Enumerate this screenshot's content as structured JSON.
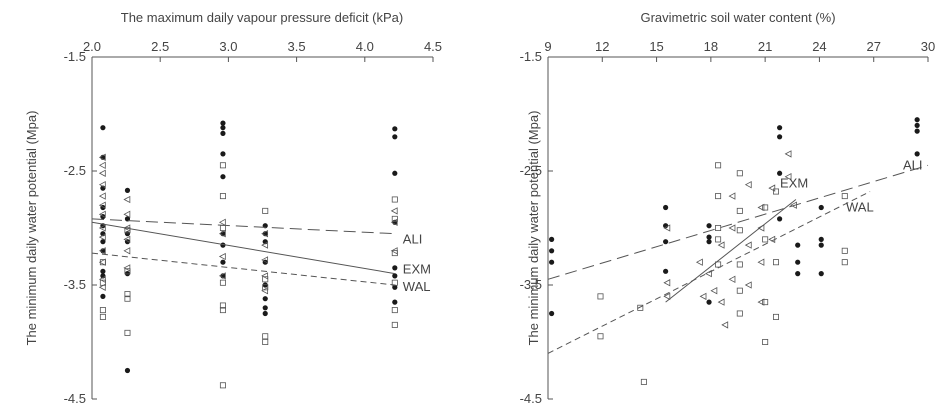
{
  "chart_data": [
    {
      "type": "scatter",
      "xlabel": "The maximum daily vapour pressure deficit (kPa)",
      "ylabel": "The minimum daily water potential (Mpa)",
      "xlim": [
        2.0,
        4.5
      ],
      "ylim": [
        -4.5,
        -1.5
      ],
      "xticks": [
        "2.0",
        "2.5",
        "3.0",
        "3.5",
        "4.0",
        "4.5"
      ],
      "yticks": [
        "-1.5",
        "-2.5",
        "-3.5",
        "-4.5"
      ],
      "x_axis_position": "top",
      "series": [
        {
          "name": "ALI",
          "marker": "filled-circle",
          "points": [
            [
              2.08,
              -2.12
            ],
            [
              2.08,
              -2.38
            ],
            [
              2.08,
              -2.65
            ],
            [
              2.08,
              -2.82
            ],
            [
              2.08,
              -2.9
            ],
            [
              2.08,
              -2.98
            ],
            [
              2.08,
              -3.05
            ],
            [
              2.08,
              -3.12
            ],
            [
              2.08,
              -3.2
            ],
            [
              2.08,
              -3.38
            ],
            [
              2.08,
              -3.42
            ],
            [
              2.08,
              -3.6
            ],
            [
              2.26,
              -2.67
            ],
            [
              2.26,
              -2.92
            ],
            [
              2.26,
              -3.05
            ],
            [
              2.26,
              -3.12
            ],
            [
              2.26,
              -3.4
            ],
            [
              2.26,
              -4.25
            ],
            [
              2.96,
              -2.08
            ],
            [
              2.96,
              -2.12
            ],
            [
              2.96,
              -2.17
            ],
            [
              2.96,
              -2.35
            ],
            [
              2.96,
              -2.55
            ],
            [
              2.96,
              -3.05
            ],
            [
              2.96,
              -3.15
            ],
            [
              2.96,
              -3.3
            ],
            [
              2.96,
              -3.42
            ],
            [
              3.27,
              -2.98
            ],
            [
              3.27,
              -3.05
            ],
            [
              3.27,
              -3.12
            ],
            [
              3.27,
              -3.3
            ],
            [
              3.27,
              -3.5
            ],
            [
              3.27,
              -3.62
            ],
            [
              3.27,
              -3.7
            ],
            [
              3.27,
              -3.75
            ],
            [
              4.22,
              -2.13
            ],
            [
              4.22,
              -2.2
            ],
            [
              4.22,
              -2.52
            ],
            [
              4.22,
              -2.95
            ],
            [
              4.22,
              -3.35
            ],
            [
              4.22,
              -3.42
            ],
            [
              4.22,
              -3.52
            ],
            [
              4.22,
              -3.65
            ]
          ],
          "fit": {
            "x": [
              2.0,
              4.22
            ],
            "y": [
              -2.92,
              -3.05
            ],
            "style": "long-dash"
          }
        },
        {
          "name": "EXM",
          "marker": "open-triangle",
          "points": [
            [
              2.08,
              -2.38
            ],
            [
              2.08,
              -2.45
            ],
            [
              2.08,
              -2.52
            ],
            [
              2.08,
              -2.62
            ],
            [
              2.08,
              -2.72
            ],
            [
              2.08,
              -2.8
            ],
            [
              2.08,
              -2.88
            ],
            [
              2.08,
              -3.0
            ],
            [
              2.08,
              -3.08
            ],
            [
              2.08,
              -3.2
            ],
            [
              2.08,
              -3.3
            ],
            [
              2.08,
              -3.45
            ],
            [
              2.08,
              -3.52
            ],
            [
              2.26,
              -2.75
            ],
            [
              2.26,
              -2.88
            ],
            [
              2.26,
              -3.0
            ],
            [
              2.26,
              -3.1
            ],
            [
              2.26,
              -3.2
            ],
            [
              2.26,
              -3.35
            ],
            [
              2.96,
              -2.95
            ],
            [
              2.96,
              -3.05
            ],
            [
              2.96,
              -3.25
            ],
            [
              2.96,
              -3.42
            ],
            [
              3.27,
              -3.05
            ],
            [
              3.27,
              -3.15
            ],
            [
              3.27,
              -3.28
            ],
            [
              3.27,
              -3.42
            ],
            [
              3.27,
              -3.55
            ],
            [
              4.22,
              -2.85
            ],
            [
              4.22,
              -2.95
            ],
            [
              4.22,
              -3.2
            ]
          ],
          "fit": {
            "x": [
              2.0,
              4.22
            ],
            "y": [
              -2.95,
              -3.4
            ],
            "style": "solid"
          }
        },
        {
          "name": "WAL",
          "marker": "open-square",
          "points": [
            [
              2.08,
              -3.3
            ],
            [
              2.08,
              -3.48
            ],
            [
              2.08,
              -3.72
            ],
            [
              2.08,
              -3.78
            ],
            [
              2.26,
              -3.02
            ],
            [
              2.26,
              -3.38
            ],
            [
              2.26,
              -3.58
            ],
            [
              2.26,
              -3.62
            ],
            [
              2.26,
              -3.92
            ],
            [
              2.96,
              -2.45
            ],
            [
              2.96,
              -2.72
            ],
            [
              2.96,
              -3.0
            ],
            [
              2.96,
              -3.48
            ],
            [
              2.96,
              -3.68
            ],
            [
              2.96,
              -3.72
            ],
            [
              2.96,
              -4.38
            ],
            [
              3.27,
              -2.85
            ],
            [
              3.27,
              -3.45
            ],
            [
              3.27,
              -3.52
            ],
            [
              3.27,
              -3.95
            ],
            [
              3.27,
              -4.0
            ],
            [
              4.22,
              -2.75
            ],
            [
              4.22,
              -2.92
            ],
            [
              4.22,
              -3.22
            ],
            [
              4.22,
              -3.48
            ],
            [
              4.22,
              -3.72
            ],
            [
              4.22,
              -3.85
            ]
          ],
          "fit": {
            "x": [
              2.0,
              4.22
            ],
            "y": [
              -3.22,
              -3.5
            ],
            "style": "short-dash"
          }
        }
      ]
    },
    {
      "type": "scatter",
      "xlabel": "Gravimetric soil water content (%)",
      "ylabel": "The minimum daily water potential (Mpa)",
      "xlim": [
        9,
        30
      ],
      "ylim": [
        -4.5,
        -1.5
      ],
      "xticks": [
        "9",
        "12",
        "15",
        "18",
        "21",
        "24",
        "27",
        "30"
      ],
      "yticks": [
        "-1.5",
        "-2.5",
        "-3.5",
        "-4.5"
      ],
      "x_axis_position": "top",
      "series": [
        {
          "name": "ALI",
          "marker": "filled-circle",
          "points": [
            [
              9.2,
              -3.1
            ],
            [
              9.2,
              -3.2
            ],
            [
              9.2,
              -3.3
            ],
            [
              9.2,
              -3.75
            ],
            [
              15.5,
              -2.82
            ],
            [
              15.5,
              -2.98
            ],
            [
              15.5,
              -3.12
            ],
            [
              15.5,
              -3.38
            ],
            [
              17.9,
              -2.98
            ],
            [
              17.9,
              -3.08
            ],
            [
              17.9,
              -3.12
            ],
            [
              17.9,
              -3.65
            ],
            [
              21.8,
              -2.12
            ],
            [
              21.8,
              -2.2
            ],
            [
              21.8,
              -2.52
            ],
            [
              21.8,
              -2.92
            ],
            [
              22.8,
              -3.15
            ],
            [
              22.8,
              -3.3
            ],
            [
              22.8,
              -3.4
            ],
            [
              24.1,
              -2.82
            ],
            [
              24.1,
              -3.1
            ],
            [
              24.1,
              -3.15
            ],
            [
              24.1,
              -3.4
            ],
            [
              29.4,
              -2.05
            ],
            [
              29.4,
              -2.1
            ],
            [
              29.4,
              -2.15
            ],
            [
              29.4,
              -2.35
            ]
          ],
          "fit": {
            "x": [
              9,
              30
            ],
            "y": [
              -3.45,
              -2.45
            ],
            "style": "long-dash"
          }
        },
        {
          "name": "EXM",
          "marker": "open-triangle",
          "points": [
            [
              15.6,
              -3.0
            ],
            [
              15.6,
              -3.48
            ],
            [
              15.6,
              -3.6
            ],
            [
              17.4,
              -3.3
            ],
            [
              17.6,
              -3.6
            ],
            [
              17.9,
              -3.4
            ],
            [
              18.2,
              -3.55
            ],
            [
              18.6,
              -3.15
            ],
            [
              18.6,
              -3.65
            ],
            [
              18.8,
              -3.85
            ],
            [
              19.2,
              -2.72
            ],
            [
              19.2,
              -3.0
            ],
            [
              19.2,
              -3.45
            ],
            [
              20.1,
              -2.62
            ],
            [
              20.1,
              -3.15
            ],
            [
              20.1,
              -3.5
            ],
            [
              20.8,
              -2.82
            ],
            [
              20.8,
              -3.0
            ],
            [
              20.8,
              -3.3
            ],
            [
              20.8,
              -3.65
            ],
            [
              21.4,
              -2.65
            ],
            [
              21.4,
              -3.1
            ],
            [
              22.3,
              -2.35
            ],
            [
              22.3,
              -2.55
            ],
            [
              22.6,
              -2.8
            ]
          ],
          "fit": {
            "x": [
              15.5,
              22.7
            ],
            "y": [
              -3.65,
              -2.75
            ],
            "style": "solid"
          }
        },
        {
          "name": "WAL",
          "marker": "open-square",
          "points": [
            [
              11.9,
              -3.6
            ],
            [
              11.9,
              -3.95
            ],
            [
              14.1,
              -3.7
            ],
            [
              14.3,
              -4.35
            ],
            [
              18.4,
              -2.45
            ],
            [
              18.4,
              -2.72
            ],
            [
              18.4,
              -3.0
            ],
            [
              18.4,
              -3.1
            ],
            [
              18.4,
              -3.32
            ],
            [
              19.6,
              -3.75
            ],
            [
              19.6,
              -3.55
            ],
            [
              19.6,
              -3.32
            ],
            [
              19.6,
              -3.02
            ],
            [
              19.6,
              -2.85
            ],
            [
              19.6,
              -2.52
            ],
            [
              21.0,
              -2.82
            ],
            [
              21.0,
              -3.1
            ],
            [
              21.0,
              -3.65
            ],
            [
              21.0,
              -4.0
            ],
            [
              21.6,
              -2.68
            ],
            [
              21.6,
              -3.3
            ],
            [
              21.6,
              -3.78
            ],
            [
              25.4,
              -2.72
            ],
            [
              25.4,
              -3.2
            ],
            [
              25.4,
              -3.3
            ]
          ],
          "fit": {
            "x": [
              9,
              26.8
            ],
            "y": [
              -4.1,
              -2.68
            ],
            "style": "short-dash"
          }
        }
      ]
    }
  ]
}
